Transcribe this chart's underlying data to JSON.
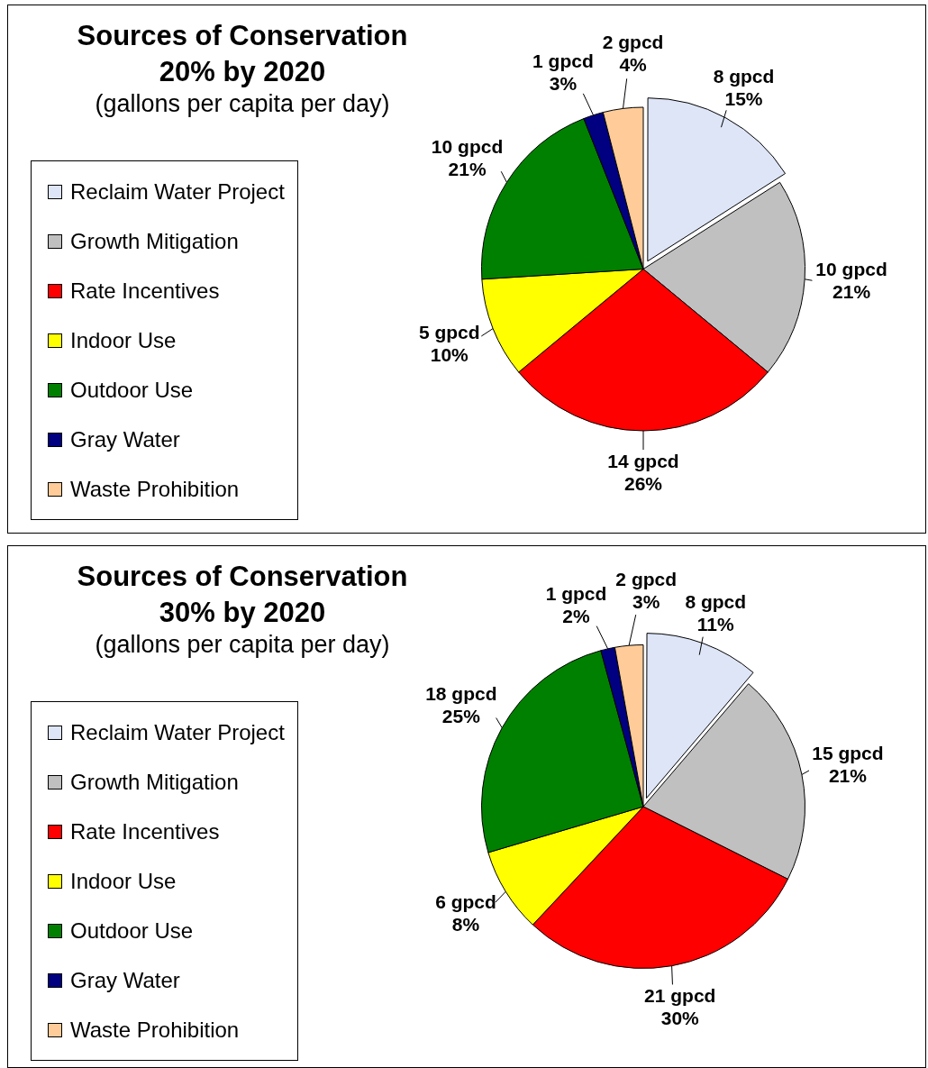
{
  "chart_data": [
    {
      "type": "pie",
      "title": "Sources of Conservation\n20% by 2020",
      "subtitle": "(gallons per capita per day)",
      "categories": [
        "Reclaim Water Project",
        "Growth Mitigation",
        "Rate Incentives",
        "Indoor Use",
        "Outdoor Use",
        "Gray Water",
        "Waste Prohibition"
      ],
      "values": [
        8,
        10,
        14,
        5,
        10,
        1,
        2
      ],
      "value_labels": [
        "8 gpcd\n15%",
        "10 gpcd\n21%",
        "14 gpcd\n26%",
        "5 gpcd\n10%",
        "10 gpcd\n21%",
        "1 gpcd\n3%",
        "2 gpcd\n4%"
      ],
      "colors": [
        "#dde5f7",
        "#c0c0c0",
        "#ff0000",
        "#ffff00",
        "#008000",
        "#000080",
        "#ffcc99"
      ],
      "legend": "left"
    },
    {
      "type": "pie",
      "title": "Sources of Conservation\n30% by 2020",
      "subtitle": "(gallons per capita per day)",
      "categories": [
        "Reclaim Water Project",
        "Growth Mitigation",
        "Rate Incentives",
        "Indoor Use",
        "Outdoor Use",
        "Gray Water",
        "Waste Prohibition"
      ],
      "values": [
        8,
        15,
        21,
        6,
        18,
        1,
        2
      ],
      "value_labels": [
        "8 gpcd\n11%",
        "15 gpcd\n21%",
        "21 gpcd\n30%",
        "6 gpcd\n8%",
        "18 gpcd\n25%",
        "1 gpcd\n2%",
        "2 gpcd\n3%"
      ],
      "colors": [
        "#dde5f7",
        "#c0c0c0",
        "#ff0000",
        "#ffff00",
        "#008000",
        "#000080",
        "#ffcc99"
      ],
      "legend": "left"
    }
  ]
}
